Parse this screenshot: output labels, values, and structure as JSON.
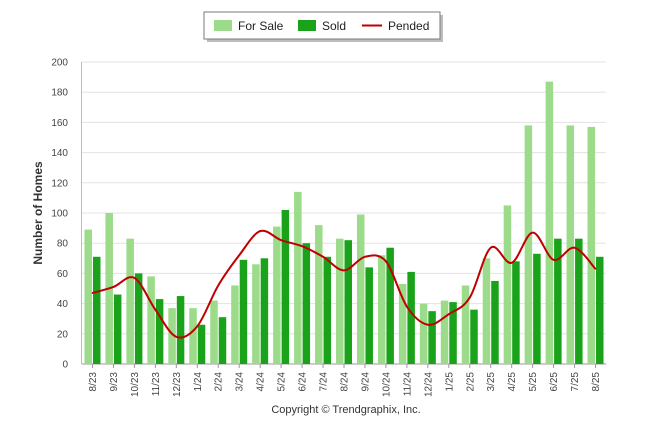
{
  "chart_data": {
    "type": "bar",
    "ylabel": "Number of Homes",
    "ylim": [
      0,
      200
    ],
    "yticks": [
      0,
      20,
      40,
      60,
      80,
      100,
      120,
      140,
      160,
      180,
      200
    ],
    "grid": true,
    "legend_position": "top-center",
    "categories": [
      "8/23",
      "9/23",
      "10/23",
      "11/23",
      "12/23",
      "1/24",
      "2/24",
      "3/24",
      "4/24",
      "5/24",
      "6/24",
      "7/24",
      "8/24",
      "9/24",
      "10/24",
      "11/24",
      "12/24",
      "1/25",
      "2/25",
      "3/25",
      "4/25",
      "5/25",
      "6/25",
      "7/25",
      "8/25"
    ],
    "series": [
      {
        "name": "For Sale",
        "kind": "bar",
        "color": "#9bdb8a",
        "values": [
          89,
          100,
          83,
          58,
          37,
          37,
          42,
          52,
          66,
          91,
          114,
          92,
          83,
          99,
          72,
          53,
          40,
          42,
          52,
          70,
          105,
          158,
          187,
          158,
          157
        ]
      },
      {
        "name": "Sold",
        "kind": "bar",
        "color": "#1aa31a",
        "values": [
          71,
          46,
          60,
          43,
          45,
          26,
          31,
          69,
          70,
          102,
          80,
          71,
          82,
          64,
          77,
          61,
          35,
          41,
          36,
          55,
          68,
          73,
          83,
          83,
          71
        ]
      },
      {
        "name": "Pended",
        "kind": "line",
        "color": "#c00000",
        "values": [
          47,
          51,
          57,
          36,
          18,
          25,
          52,
          72,
          88,
          82,
          78,
          71,
          62,
          71,
          68,
          38,
          26,
          33,
          44,
          77,
          67,
          87,
          69,
          77,
          63
        ]
      }
    ],
    "credit": "Copyright © Trendgraphix, Inc."
  }
}
